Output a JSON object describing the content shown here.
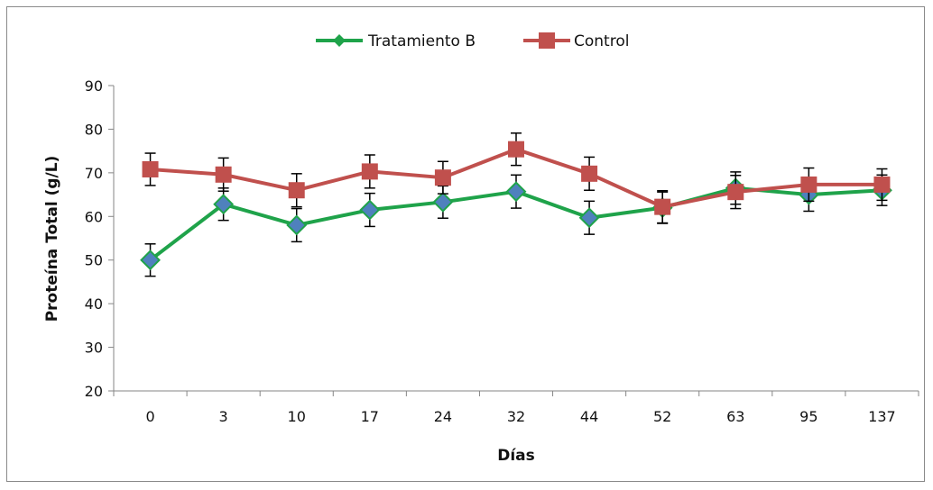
{
  "chart_data": {
    "type": "line",
    "title": "",
    "xlabel": "Días",
    "ylabel": "Proteína Total (g/L)",
    "categories": [
      "0",
      "3",
      "10",
      "17",
      "24",
      "32",
      "44",
      "52",
      "63",
      "95",
      "137"
    ],
    "ylim": [
      20,
      90
    ],
    "yticks": [
      "20",
      "30",
      "40",
      "50",
      "60",
      "70",
      "80",
      "90"
    ],
    "grid": false,
    "legend_position": "top",
    "series": [
      {
        "name": "Tratamiento B",
        "color": "#1fa34a",
        "marker_color": "#4f81bd",
        "marker": "diamond",
        "values": [
          50.0,
          62.8,
          58.0,
          61.5,
          63.3,
          65.7,
          59.7,
          62.0,
          66.5,
          65.0,
          66.0
        ],
        "error": [
          3.7,
          3.7,
          3.8,
          3.8,
          3.7,
          3.8,
          3.8,
          3.6,
          3.7,
          3.8,
          3.5
        ]
      },
      {
        "name": "Control",
        "color": "#c0504d",
        "marker_color": "#c0504d",
        "marker": "square",
        "values": [
          70.8,
          69.6,
          66.0,
          70.3,
          68.9,
          75.4,
          69.8,
          62.2,
          65.6,
          67.3,
          67.3
        ],
        "error": [
          3.7,
          3.8,
          3.8,
          3.8,
          3.7,
          3.7,
          3.8,
          3.7,
          3.8,
          3.8,
          3.6
        ]
      }
    ]
  }
}
